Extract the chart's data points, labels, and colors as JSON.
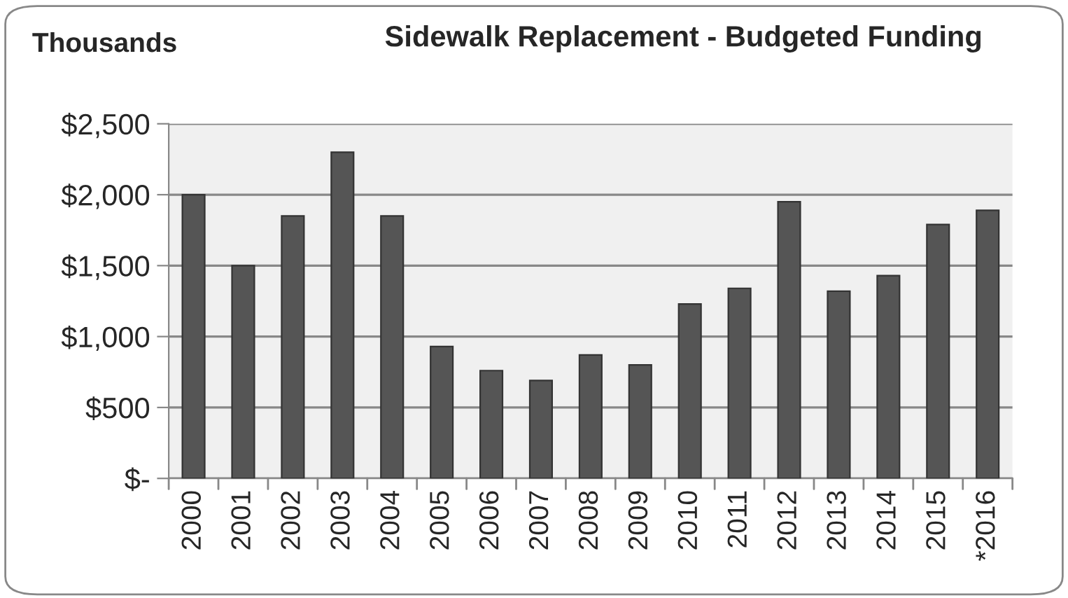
{
  "chart_data": {
    "type": "bar",
    "title": "Sidewalk Replacement - Budgeted Funding",
    "ylabel": "Thousands",
    "categories": [
      "2000",
      "2001",
      "2002",
      "2003",
      "2004",
      "2005",
      "2006",
      "2007",
      "2008",
      "2009",
      "2010",
      "2011",
      "2012",
      "2013",
      "2014",
      "2015",
      "*2016"
    ],
    "values": [
      2000,
      1500,
      1850,
      2300,
      1850,
      930,
      760,
      690,
      870,
      800,
      1230,
      1340,
      1950,
      1320,
      1430,
      1790,
      1890
    ],
    "color": "#555555",
    "ylim": [
      0,
      2500
    ],
    "yticks": [
      {
        "value": 0,
        "label": "$-"
      },
      {
        "value": 500,
        "label": "$500"
      },
      {
        "value": 1000,
        "label": "$1,000"
      },
      {
        "value": 1500,
        "label": "$1,500"
      },
      {
        "value": 2000,
        "label": "$2,000"
      },
      {
        "value": 2500,
        "label": "$2,500"
      }
    ],
    "grid": "y"
  }
}
